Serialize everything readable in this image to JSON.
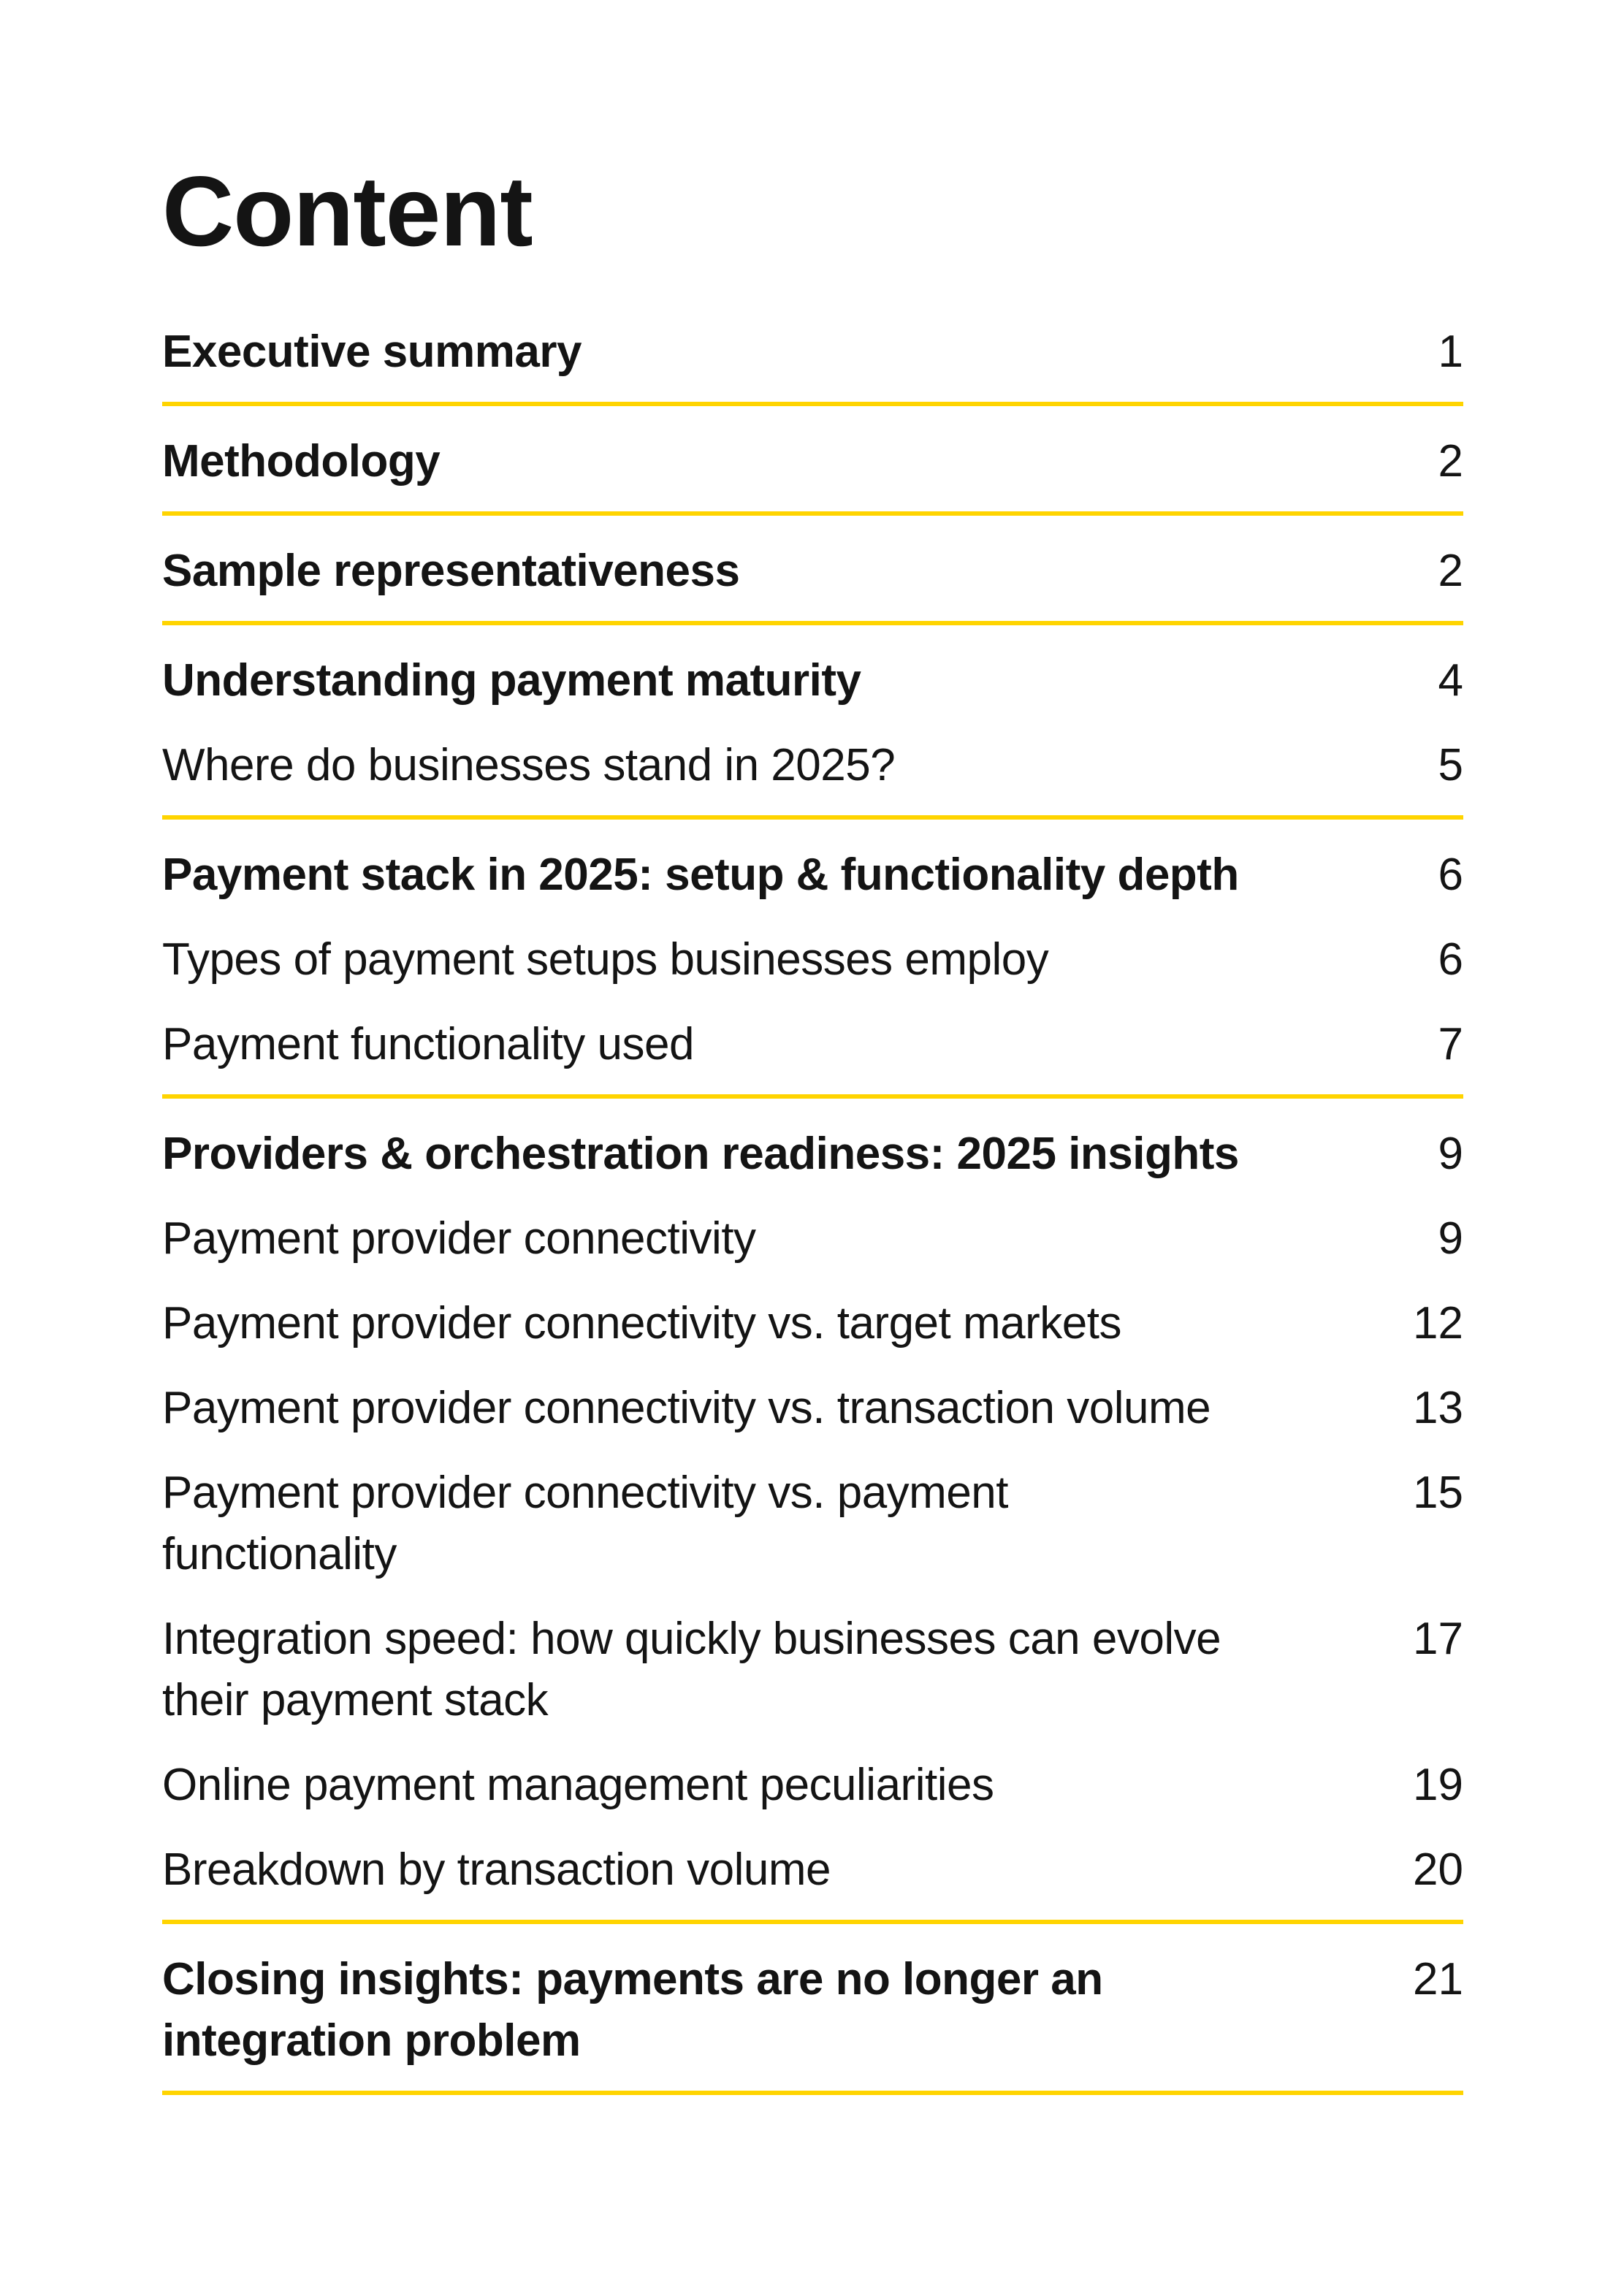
{
  "page": {
    "background_color": "#ffffff",
    "text_color": "#141414",
    "accent_color": "#FFD400"
  },
  "title": "Content",
  "toc": {
    "groups": [
      {
        "items": [
          {
            "label": "Executive summary",
            "page": "1",
            "bold": true
          }
        ]
      },
      {
        "items": [
          {
            "label": "Methodology",
            "page": "2",
            "bold": true
          }
        ]
      },
      {
        "items": [
          {
            "label": "Sample representativeness",
            "page": "2",
            "bold": true
          }
        ]
      },
      {
        "items": [
          {
            "label": "Understanding payment maturity",
            "page": "4",
            "bold": true
          },
          {
            "label": "Where do businesses stand in 2025?",
            "page": "5",
            "bold": false
          }
        ]
      },
      {
        "items": [
          {
            "label": "Payment stack in 2025: setup & functionality depth",
            "page": "6",
            "bold": true
          },
          {
            "label": "Types of payment setups businesses employ",
            "page": "6",
            "bold": false
          },
          {
            "label": "Payment functionality used",
            "page": "7",
            "bold": false
          }
        ]
      },
      {
        "items": [
          {
            "label": "Providers & orchestration readiness: 2025 insights",
            "page": "9",
            "bold": true
          },
          {
            "label": "Payment provider connectivity",
            "page": "9",
            "bold": false
          },
          {
            "label": "Payment provider connectivity vs. target markets",
            "page": "12",
            "bold": false
          },
          {
            "label": "Payment provider connectivity vs. transaction volume",
            "page": "13",
            "bold": false
          },
          {
            "label": "Payment provider connectivity vs. payment\nfunctionality",
            "page": "15",
            "bold": false
          },
          {
            "label": "Integration speed: how quickly businesses can evolve\ntheir payment stack",
            "page": "17",
            "bold": false
          },
          {
            "label": "Online payment management peculiarities",
            "page": "19",
            "bold": false
          },
          {
            "label": "Breakdown by transaction volume",
            "page": "20",
            "bold": false
          }
        ]
      },
      {
        "items": [
          {
            "label": "Closing insights: payments are no longer an\nintegration problem",
            "page": "21",
            "bold": true
          }
        ]
      }
    ]
  }
}
